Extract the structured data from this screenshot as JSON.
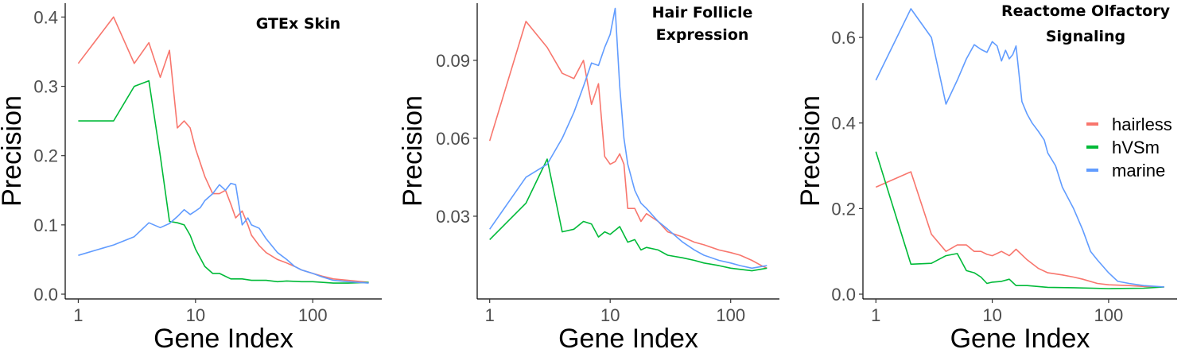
{
  "colors": {
    "hairless": "#F8766D",
    "hVSm": "#00BA38",
    "marine": "#619CFF"
  },
  "legend": [
    {
      "name": "hairless",
      "color": "#F8766D"
    },
    {
      "name": "hVSm",
      "color": "#00BA38"
    },
    {
      "name": "marine",
      "color": "#619CFF"
    }
  ],
  "chart_data": [
    {
      "type": "line",
      "title": [
        "GTEx Skin"
      ],
      "xlabel": "Gene Index",
      "ylabel": "Precision",
      "xscale": "log10",
      "xlim": [
        1,
        300
      ],
      "ylim": [
        0,
        0.42
      ],
      "xticks": [
        1,
        10,
        100
      ],
      "xticklabels": [
        "1",
        "10",
        "100"
      ],
      "yticks": [
        0,
        0.1,
        0.2,
        0.3,
        0.4
      ],
      "yticklabels": [
        "0.0",
        "0.1",
        "0.2",
        "0.3",
        "0.4"
      ],
      "grid": false,
      "series": [
        {
          "name": "hairless",
          "x": [
            1,
            2,
            3,
            4,
            5,
            6,
            7,
            8,
            9,
            10,
            12,
            14,
            16,
            18,
            20,
            22,
            25,
            28,
            30,
            35,
            40,
            50,
            60,
            70,
            80,
            100,
            120,
            150,
            200,
            300
          ],
          "y": [
            0.333,
            0.4,
            0.333,
            0.363,
            0.313,
            0.352,
            0.24,
            0.25,
            0.24,
            0.21,
            0.17,
            0.145,
            0.145,
            0.15,
            0.13,
            0.11,
            0.12,
            0.1,
            0.085,
            0.07,
            0.06,
            0.05,
            0.045,
            0.04,
            0.035,
            0.03,
            0.026,
            0.022,
            0.02,
            0.017
          ]
        },
        {
          "name": "hVSm",
          "x": [
            1,
            2,
            3,
            4,
            5,
            6,
            7,
            8,
            9,
            10,
            12,
            14,
            16,
            20,
            25,
            30,
            40,
            50,
            60,
            80,
            100,
            150,
            200,
            300
          ],
          "y": [
            0.25,
            0.25,
            0.3,
            0.308,
            0.2,
            0.105,
            0.103,
            0.1,
            0.085,
            0.065,
            0.04,
            0.03,
            0.03,
            0.022,
            0.022,
            0.02,
            0.02,
            0.018,
            0.019,
            0.018,
            0.018,
            0.016,
            0.016,
            0.017
          ]
        },
        {
          "name": "marine",
          "x": [
            1,
            2,
            3,
            4,
            5,
            6,
            7,
            8,
            9,
            10,
            11,
            12,
            14,
            16,
            18,
            20,
            22,
            25,
            28,
            30,
            35,
            40,
            50,
            60,
            70,
            80,
            100,
            120,
            150,
            200,
            300
          ],
          "y": [
            0.056,
            0.071,
            0.083,
            0.103,
            0.096,
            0.102,
            0.112,
            0.122,
            0.115,
            0.12,
            0.125,
            0.135,
            0.145,
            0.158,
            0.15,
            0.16,
            0.158,
            0.1,
            0.11,
            0.1,
            0.095,
            0.08,
            0.06,
            0.05,
            0.04,
            0.035,
            0.03,
            0.025,
            0.02,
            0.018,
            0.016
          ]
        }
      ]
    },
    {
      "type": "line",
      "title": [
        "Hair Follicle",
        "Expression"
      ],
      "xlabel": "Gene Index",
      "ylabel": "Precision",
      "xscale": "log10",
      "xlim": [
        1,
        200
      ],
      "ylim": [
        0,
        0.112
      ],
      "xticks": [
        1,
        10,
        100
      ],
      "xticklabels": [
        "1",
        "10",
        "100"
      ],
      "yticks": [
        0.03,
        0.06,
        0.09
      ],
      "yticklabels": [
        "0.03",
        "0.06",
        "0.09"
      ],
      "grid": false,
      "series": [
        {
          "name": "hairless",
          "x": [
            1,
            2,
            3,
            4,
            5,
            6,
            7,
            8,
            9,
            10,
            11,
            12,
            13,
            14,
            16,
            18,
            20,
            25,
            30,
            40,
            50,
            60,
            80,
            100,
            120,
            150,
            180,
            200
          ],
          "y": [
            0.059,
            0.105,
            0.095,
            0.085,
            0.083,
            0.09,
            0.073,
            0.081,
            0.053,
            0.05,
            0.051,
            0.054,
            0.05,
            0.033,
            0.033,
            0.028,
            0.031,
            0.028,
            0.024,
            0.022,
            0.02,
            0.019,
            0.017,
            0.016,
            0.015,
            0.013,
            0.011,
            0.01
          ]
        },
        {
          "name": "hVSm",
          "x": [
            1,
            2,
            3,
            4,
            5,
            6,
            7,
            8,
            9,
            10,
            12,
            14,
            16,
            18,
            20,
            25,
            30,
            40,
            50,
            60,
            80,
            100,
            150,
            200
          ],
          "y": [
            0.021,
            0.035,
            0.052,
            0.024,
            0.025,
            0.028,
            0.027,
            0.022,
            0.024,
            0.023,
            0.026,
            0.02,
            0.021,
            0.017,
            0.018,
            0.017,
            0.015,
            0.014,
            0.013,
            0.012,
            0.011,
            0.01,
            0.009,
            0.01
          ]
        },
        {
          "name": "marine",
          "x": [
            1,
            2,
            3,
            4,
            5,
            6,
            7,
            8,
            9,
            10,
            11,
            12,
            13,
            14,
            16,
            18,
            20,
            25,
            30,
            40,
            50,
            60,
            80,
            100,
            120,
            150,
            200
          ],
          "y": [
            0.025,
            0.045,
            0.05,
            0.06,
            0.07,
            0.08,
            0.089,
            0.088,
            0.095,
            0.1,
            0.11,
            0.08,
            0.06,
            0.05,
            0.04,
            0.035,
            0.033,
            0.028,
            0.025,
            0.02,
            0.017,
            0.015,
            0.013,
            0.012,
            0.011,
            0.01,
            0.011
          ]
        }
      ]
    },
    {
      "type": "line",
      "title": [
        "Reactome Olfactory",
        "Signaling"
      ],
      "xlabel": "Gene Index",
      "ylabel": "Precision",
      "xscale": "log10",
      "xlim": [
        1,
        300
      ],
      "ylim": [
        0,
        0.68
      ],
      "xticks": [
        1,
        10,
        100
      ],
      "xticklabels": [
        "1",
        "10",
        "100"
      ],
      "yticks": [
        0,
        0.2,
        0.4,
        0.6
      ],
      "yticklabels": [
        "0.0",
        "0.2",
        "0.4",
        "0.6"
      ],
      "grid": false,
      "series": [
        {
          "name": "hairless",
          "x": [
            1,
            2,
            3,
            4,
            5,
            6,
            7,
            8,
            9,
            10,
            12,
            14,
            16,
            20,
            25,
            30,
            40,
            50,
            60,
            80,
            100,
            150,
            200,
            300
          ],
          "y": [
            0.25,
            0.286,
            0.14,
            0.1,
            0.115,
            0.115,
            0.1,
            0.1,
            0.093,
            0.09,
            0.1,
            0.09,
            0.105,
            0.08,
            0.06,
            0.05,
            0.045,
            0.04,
            0.035,
            0.025,
            0.022,
            0.02,
            0.018,
            0.017
          ]
        },
        {
          "name": "hVSm",
          "x": [
            1,
            2,
            3,
            4,
            5,
            6,
            7,
            8,
            9,
            10,
            12,
            14,
            16,
            20,
            30,
            50,
            100,
            200,
            300
          ],
          "y": [
            0.333,
            0.07,
            0.072,
            0.09,
            0.095,
            0.055,
            0.05,
            0.04,
            0.025,
            0.028,
            0.03,
            0.035,
            0.02,
            0.02,
            0.016,
            0.015,
            0.013,
            0.014,
            0.017
          ]
        },
        {
          "name": "marine",
          "x": [
            1,
            2,
            3,
            4,
            5,
            6,
            7,
            8,
            9,
            10,
            11,
            12,
            13,
            14,
            15,
            16,
            18,
            20,
            22,
            25,
            28,
            30,
            35,
            40,
            50,
            60,
            70,
            80,
            100,
            120,
            150,
            200,
            300
          ],
          "y": [
            0.5,
            0.667,
            0.6,
            0.444,
            0.5,
            0.55,
            0.583,
            0.572,
            0.565,
            0.59,
            0.58,
            0.545,
            0.57,
            0.55,
            0.56,
            0.58,
            0.45,
            0.42,
            0.4,
            0.38,
            0.36,
            0.33,
            0.3,
            0.25,
            0.2,
            0.15,
            0.1,
            0.08,
            0.05,
            0.03,
            0.025,
            0.02,
            0.017
          ]
        }
      ]
    }
  ]
}
